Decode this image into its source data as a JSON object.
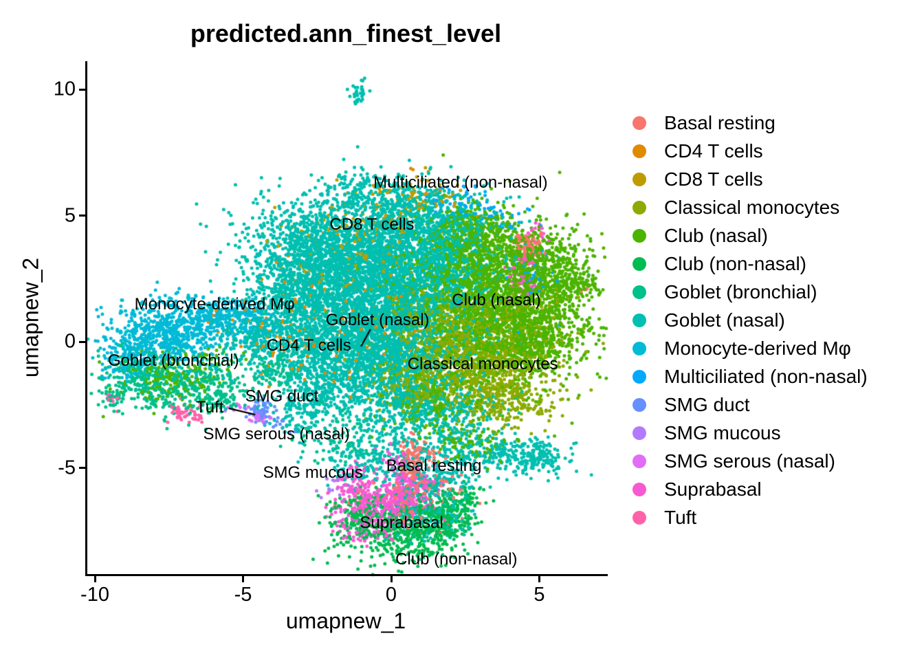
{
  "chart_data": {
    "type": "scatter",
    "title": "predicted.ann_finest_level",
    "xlabel": "umapnew_1",
    "ylabel": "umapnew_2",
    "xlim": [
      -10.3,
      7.2
    ],
    "ylim": [
      -9.3,
      11.1
    ],
    "x_ticks": [
      -10,
      -5,
      0,
      5
    ],
    "y_ticks": [
      10,
      5,
      0,
      -5
    ],
    "grid": false,
    "legend_position": "right",
    "point_encoding": "clusters are gaussian blobs: [center_x, center_y, sd_x, sd_y, n_points, rotation_deg]",
    "series": [
      {
        "name": "Basal resting",
        "color": "#F8766D",
        "clusters": [
          [
            0.75,
            -5.0,
            0.18,
            0.55,
            90,
            12
          ],
          [
            0.5,
            -6.2,
            0.2,
            0.4,
            60,
            15
          ],
          [
            1.0,
            -4.4,
            0.35,
            0.25,
            40,
            0
          ],
          [
            4.55,
            3.85,
            0.33,
            0.28,
            70,
            0
          ],
          [
            0.0,
            -6.6,
            0.9,
            0.5,
            50,
            0
          ],
          [
            1.7,
            -5.6,
            0.5,
            0.4,
            30,
            0
          ],
          [
            6.45,
            2.05,
            0.08,
            0.08,
            4,
            0
          ]
        ]
      },
      {
        "name": "CD4 T cells",
        "color": "#E18A00",
        "clusters": [
          [
            -2.7,
            0.1,
            1.3,
            0.8,
            90,
            0
          ],
          [
            -1.2,
            1.8,
            1.5,
            1.2,
            50,
            0
          ],
          [
            -5.2,
            1.0,
            0.8,
            0.3,
            15,
            0
          ],
          [
            0.6,
            6.3,
            0.6,
            0.3,
            12,
            0
          ]
        ]
      },
      {
        "name": "CD8 T cells",
        "color": "#BE9C00",
        "clusters": [
          [
            -0.6,
            4.4,
            1.6,
            0.9,
            120,
            0
          ],
          [
            0.9,
            5.6,
            1.0,
            0.5,
            50,
            0
          ],
          [
            -2.0,
            3.0,
            1.0,
            0.8,
            40,
            0
          ]
        ]
      },
      {
        "name": "Classical monocytes",
        "color": "#8CAB00",
        "clusters": [
          [
            2.7,
            -0.9,
            1.2,
            0.9,
            800,
            0
          ],
          [
            1.6,
            0.6,
            0.9,
            0.8,
            350,
            0
          ],
          [
            3.9,
            -2.3,
            0.9,
            0.5,
            250,
            0
          ],
          [
            4.3,
            0.8,
            1.0,
            0.8,
            220,
            0
          ],
          [
            0.6,
            -1.8,
            0.7,
            0.6,
            180,
            0
          ]
        ]
      },
      {
        "name": "Club (nasal)",
        "color": "#4CB400",
        "clusters": [
          [
            3.7,
            1.3,
            1.5,
            1.5,
            2400,
            0
          ],
          [
            5.2,
            2.9,
            0.7,
            0.7,
            350,
            0
          ],
          [
            2.4,
            3.3,
            0.9,
            0.9,
            450,
            0
          ],
          [
            6.3,
            2.25,
            0.35,
            0.2,
            60,
            0
          ],
          [
            4.9,
            0.1,
            0.6,
            0.7,
            200,
            0
          ],
          [
            3.2,
            4.2,
            0.8,
            0.5,
            250,
            -20
          ],
          [
            -7.3,
            -1.4,
            0.9,
            0.5,
            180,
            20
          ],
          [
            1.4,
            -2.2,
            0.8,
            0.7,
            220,
            0
          ],
          [
            2.6,
            -4.0,
            0.7,
            0.4,
            90,
            0
          ]
        ]
      },
      {
        "name": "Club (non-nasal)",
        "color": "#00BC51",
        "clusters": [
          [
            0.4,
            -7.5,
            1.1,
            0.65,
            520,
            5
          ],
          [
            1.8,
            -7.0,
            0.6,
            0.5,
            180,
            0
          ],
          [
            -1.1,
            -6.8,
            0.5,
            0.45,
            130,
            0
          ],
          [
            2.4,
            -6.3,
            0.4,
            0.3,
            60,
            0
          ]
        ]
      },
      {
        "name": "Goblet (bronchial)",
        "color": "#00C08B",
        "clusters": [
          [
            -8.4,
            -1.2,
            0.7,
            0.5,
            220,
            20
          ],
          [
            -7.0,
            -1.8,
            0.9,
            0.45,
            240,
            25
          ],
          [
            -5.7,
            -2.3,
            0.6,
            0.35,
            120,
            25
          ],
          [
            -9.4,
            -2.2,
            0.25,
            0.3,
            40,
            0
          ],
          [
            -3.9,
            -1.2,
            0.5,
            0.4,
            90,
            0
          ],
          [
            -1.5,
            -3.6,
            1.0,
            0.7,
            90,
            0
          ]
        ]
      },
      {
        "name": "Goblet (nasal)",
        "color": "#00BFB0",
        "clusters": [
          [
            -1.3,
            3.3,
            1.7,
            1.2,
            2000,
            0
          ],
          [
            -0.3,
            1.3,
            1.5,
            1.2,
            1700,
            0
          ],
          [
            -1.6,
            -0.5,
            1.2,
            0.9,
            900,
            0
          ],
          [
            -3.2,
            1.6,
            0.8,
            1.0,
            500,
            0
          ],
          [
            0.9,
            4.7,
            1.3,
            0.8,
            700,
            -10
          ],
          [
            -2.5,
            3.9,
            0.9,
            0.6,
            300,
            0
          ],
          [
            0.3,
            -0.8,
            1.0,
            0.9,
            600,
            0
          ],
          [
            0.4,
            -2.8,
            0.8,
            0.9,
            350,
            0
          ],
          [
            -1.12,
            9.95,
            0.16,
            0.27,
            30,
            0
          ],
          [
            -1.15,
            9.5,
            0.05,
            0.06,
            3,
            0
          ],
          [
            3.8,
            -4.5,
            1.1,
            0.4,
            280,
            -8
          ],
          [
            4.9,
            -4.4,
            0.35,
            0.25,
            70,
            -15
          ],
          [
            1.6,
            -5.4,
            0.8,
            0.7,
            220,
            0
          ],
          [
            -0.9,
            -4.7,
            0.9,
            0.5,
            180,
            0
          ],
          [
            -4.6,
            0.2,
            0.8,
            0.5,
            220,
            -15
          ],
          [
            -2.4,
            -2.0,
            0.8,
            0.7,
            250,
            20
          ],
          [
            2.2,
            -2.8,
            0.8,
            0.6,
            200,
            0
          ],
          [
            1.2,
            -6.9,
            0.7,
            0.5,
            150,
            0
          ],
          [
            2.0,
            3.0,
            0.8,
            1.0,
            350,
            0
          ],
          [
            -1.2,
            6.1,
            0.6,
            0.35,
            80,
            0
          ],
          [
            0.0,
            5.9,
            0.8,
            0.4,
            100,
            0
          ],
          [
            -3.3,
            -3.0,
            0.5,
            0.5,
            60,
            0
          ],
          [
            2.65,
            -5.8,
            0.06,
            0.06,
            3,
            0
          ]
        ]
      },
      {
        "name": "Monocyte-derived Mφ",
        "color": "#00BAD6",
        "clusters": [
          [
            -7.6,
            0.2,
            0.95,
            0.6,
            600,
            -10
          ],
          [
            -6.0,
            0.9,
            1.0,
            0.4,
            280,
            -12
          ],
          [
            -8.9,
            -0.6,
            0.5,
            0.5,
            150,
            0
          ],
          [
            -4.8,
            1.1,
            0.5,
            0.3,
            90,
            -15
          ]
        ]
      },
      {
        "name": "Multiciliated (non-nasal)",
        "color": "#00A9FA",
        "clusters": [
          [
            3.0,
            5.0,
            0.8,
            0.4,
            60,
            -15
          ],
          [
            2.2,
            5.8,
            0.5,
            0.3,
            30,
            0
          ],
          [
            4.85,
            2.8,
            0.25,
            0.4,
            30,
            0
          ],
          [
            3.6,
            2.2,
            1.2,
            1.2,
            25,
            0
          ]
        ]
      },
      {
        "name": "SMG duct",
        "color": "#668FFF",
        "clusters": [
          [
            -4.35,
            -2.7,
            0.22,
            0.25,
            50,
            0
          ],
          [
            -3.9,
            -3.2,
            0.3,
            0.12,
            14,
            -20
          ]
        ]
      },
      {
        "name": "SMG mucous",
        "color": "#B37AFF",
        "clusters": [
          [
            -4.5,
            -2.95,
            0.12,
            0.1,
            8,
            0
          ],
          [
            -1.9,
            -5.9,
            0.35,
            0.25,
            18,
            0
          ]
        ]
      },
      {
        "name": "SMG serous (nasal)",
        "color": "#E16DF7",
        "clusters": [
          [
            -4.4,
            -3.05,
            0.18,
            0.12,
            16,
            0
          ],
          [
            -5.2,
            -2.6,
            0.3,
            0.15,
            8,
            20
          ]
        ]
      },
      {
        "name": "Suprabasal",
        "color": "#F859D3",
        "clusters": [
          [
            -0.2,
            -6.4,
            0.75,
            0.5,
            380,
            10
          ],
          [
            0.7,
            -5.8,
            0.45,
            0.35,
            110,
            0
          ],
          [
            -1.3,
            -5.5,
            0.35,
            0.35,
            70,
            0
          ],
          [
            -0.9,
            -7.3,
            0.4,
            0.3,
            60,
            0
          ],
          [
            4.45,
            2.7,
            0.28,
            0.45,
            50,
            0
          ],
          [
            4.9,
            4.4,
            0.15,
            0.15,
            12,
            0
          ],
          [
            0.2,
            -4.7,
            0.3,
            0.3,
            30,
            0
          ]
        ]
      },
      {
        "name": "Tuft",
        "color": "#FF62A8",
        "clusters": [
          [
            -7.0,
            -2.8,
            0.3,
            0.22,
            45,
            0
          ],
          [
            -9.45,
            -2.3,
            0.15,
            0.15,
            12,
            0
          ],
          [
            -6.6,
            -3.1,
            0.15,
            0.12,
            8,
            0
          ],
          [
            4.7,
            3.3,
            0.3,
            0.3,
            10,
            0
          ]
        ]
      }
    ],
    "cluster_labels": [
      {
        "text": "Multiciliated (non-nasal)",
        "x": 2.34,
        "y": 6.29
      },
      {
        "text": "CD8 T cells",
        "x": -0.65,
        "y": 4.63
      },
      {
        "text": "Monocyte-derived Mφ",
        "x": -5.96,
        "y": 1.47
      },
      {
        "text": "Club (nasal)",
        "x": 3.55,
        "y": 1.63
      },
      {
        "text": "Goblet (nasal)",
        "x": -0.46,
        "y": 0.84
      },
      {
        "text": "CD4 T cells",
        "x": -2.78,
        "y": -0.16
      },
      {
        "text": "Goblet (bronchial)",
        "x": -7.35,
        "y": -0.76
      },
      {
        "text": "Classical monocytes",
        "x": 3.09,
        "y": -0.9
      },
      {
        "text": "SMG duct",
        "x": -3.69,
        "y": -2.18
      },
      {
        "text": "Tuft",
        "x": -6.12,
        "y": -2.62
      },
      {
        "text": "SMG serous (nasal)",
        "x": -3.87,
        "y": -3.68
      },
      {
        "text": "SMG mucous",
        "x": -2.64,
        "y": -5.2
      },
      {
        "text": "Basal resting",
        "x": 1.44,
        "y": -4.93
      },
      {
        "text": "Suprabasal",
        "x": 0.35,
        "y": -7.19
      },
      {
        "text": "Club (non-nasal)",
        "x": 2.2,
        "y": -8.64
      }
    ],
    "leader_lines": [
      {
        "x1": -5.48,
        "y1": -2.64,
        "x2": -4.59,
        "y2": -2.89
      },
      {
        "x1": -0.7,
        "y1": 0.49,
        "x2": -1.02,
        "y2": -0.19
      }
    ]
  }
}
